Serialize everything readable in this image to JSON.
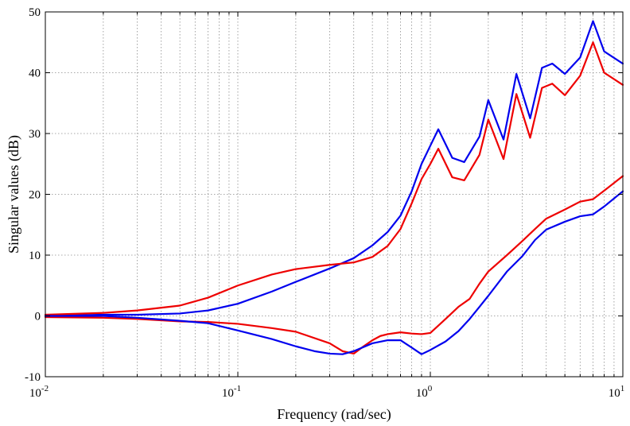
{
  "chart_data": {
    "type": "line",
    "title": "",
    "xlabel": "Frequency (rad/sec)",
    "ylabel": "Singular values (dB)",
    "xscale": "log",
    "xlim": [
      0.01,
      10
    ],
    "ylim": [
      -10,
      50
    ],
    "grid": true,
    "legend": "none",
    "x_ticks": [
      {
        "base": "10",
        "exp": "-2",
        "value": 0.01
      },
      {
        "base": "10",
        "exp": "-1",
        "value": 0.1
      },
      {
        "base": "10",
        "exp": "0",
        "value": 1
      },
      {
        "base": "10",
        "exp": "1",
        "value": 10
      }
    ],
    "y_ticks": [
      -10,
      0,
      10,
      20,
      30,
      40,
      50
    ],
    "series": [
      {
        "color": "#0000ee",
        "points": [
          [
            0.01,
            0
          ],
          [
            0.02,
            0.2
          ],
          [
            0.03,
            0.2
          ],
          [
            0.05,
            0.4
          ],
          [
            0.07,
            0.9
          ],
          [
            0.1,
            2
          ],
          [
            0.15,
            4
          ],
          [
            0.2,
            5.6
          ],
          [
            0.3,
            7.8
          ],
          [
            0.4,
            9.5
          ],
          [
            0.5,
            11.6
          ],
          [
            0.6,
            13.8
          ],
          [
            0.7,
            16.5
          ],
          [
            0.8,
            20.5
          ],
          [
            0.9,
            25
          ],
          [
            1.0,
            28
          ],
          [
            1.1,
            30.7
          ],
          [
            1.3,
            26
          ],
          [
            1.5,
            25.3
          ],
          [
            1.8,
            29.5
          ],
          [
            2.0,
            35.5
          ],
          [
            2.4,
            29
          ],
          [
            2.8,
            39.8
          ],
          [
            3.3,
            32.5
          ],
          [
            3.8,
            40.8
          ],
          [
            4.3,
            41.5
          ],
          [
            5.0,
            39.8
          ],
          [
            6.0,
            42.5
          ],
          [
            7.0,
            48.5
          ],
          [
            8.0,
            43.5
          ],
          [
            10,
            41.5
          ]
        ]
      },
      {
        "color": "#ee0000",
        "points": [
          [
            0.01,
            0.2
          ],
          [
            0.02,
            0.5
          ],
          [
            0.03,
            0.9
          ],
          [
            0.05,
            1.7
          ],
          [
            0.07,
            3
          ],
          [
            0.1,
            5
          ],
          [
            0.15,
            6.8
          ],
          [
            0.2,
            7.7
          ],
          [
            0.3,
            8.4
          ],
          [
            0.4,
            8.8
          ],
          [
            0.5,
            9.7
          ],
          [
            0.6,
            11.5
          ],
          [
            0.7,
            14.3
          ],
          [
            0.8,
            18.5
          ],
          [
            0.9,
            22.5
          ],
          [
            1.0,
            25
          ],
          [
            1.1,
            27.5
          ],
          [
            1.3,
            22.8
          ],
          [
            1.5,
            22.3
          ],
          [
            1.8,
            26.5
          ],
          [
            2.0,
            32.3
          ],
          [
            2.4,
            25.8
          ],
          [
            2.8,
            36.5
          ],
          [
            3.3,
            29.3
          ],
          [
            3.8,
            37.5
          ],
          [
            4.3,
            38.2
          ],
          [
            5.0,
            36.3
          ],
          [
            6.0,
            39.5
          ],
          [
            7.0,
            45
          ],
          [
            8.0,
            40
          ],
          [
            10,
            38
          ]
        ]
      },
      {
        "color": "#ee0000",
        "points": [
          [
            0.01,
            -0.2
          ],
          [
            0.02,
            -0.3
          ],
          [
            0.03,
            -0.5
          ],
          [
            0.05,
            -0.9
          ],
          [
            0.07,
            -1
          ],
          [
            0.1,
            -1.3
          ],
          [
            0.15,
            -2
          ],
          [
            0.2,
            -2.6
          ],
          [
            0.3,
            -4.5
          ],
          [
            0.35,
            -5.8
          ],
          [
            0.4,
            -6.2
          ],
          [
            0.45,
            -5
          ],
          [
            0.5,
            -4
          ],
          [
            0.55,
            -3.3
          ],
          [
            0.6,
            -3
          ],
          [
            0.7,
            -2.7
          ],
          [
            0.8,
            -2.9
          ],
          [
            0.9,
            -3
          ],
          [
            1.0,
            -2.8
          ],
          [
            1.2,
            -0.5
          ],
          [
            1.4,
            1.5
          ],
          [
            1.6,
            2.8
          ],
          [
            1.8,
            5.3
          ],
          [
            2.0,
            7.3
          ],
          [
            2.5,
            10
          ],
          [
            3.0,
            12.3
          ],
          [
            3.5,
            14.3
          ],
          [
            4.0,
            16
          ],
          [
            5.0,
            17.5
          ],
          [
            6.0,
            18.8
          ],
          [
            7.0,
            19.2
          ],
          [
            8.0,
            20.6
          ],
          [
            10,
            23
          ]
        ]
      },
      {
        "color": "#0000ee",
        "points": [
          [
            0.01,
            0
          ],
          [
            0.02,
            0
          ],
          [
            0.03,
            -0.3
          ],
          [
            0.05,
            -0.8
          ],
          [
            0.07,
            -1.2
          ],
          [
            0.1,
            -2.4
          ],
          [
            0.15,
            -3.8
          ],
          [
            0.2,
            -5
          ],
          [
            0.25,
            -5.8
          ],
          [
            0.3,
            -6.2
          ],
          [
            0.35,
            -6.3
          ],
          [
            0.4,
            -5.8
          ],
          [
            0.5,
            -4.5
          ],
          [
            0.6,
            -4
          ],
          [
            0.7,
            -4
          ],
          [
            0.8,
            -5.2
          ],
          [
            0.9,
            -6.3
          ],
          [
            1.0,
            -5.6
          ],
          [
            1.2,
            -4.2
          ],
          [
            1.4,
            -2.5
          ],
          [
            1.6,
            -0.5
          ],
          [
            1.8,
            1.5
          ],
          [
            2.0,
            3.3
          ],
          [
            2.5,
            7.3
          ],
          [
            3.0,
            9.8
          ],
          [
            3.5,
            12.5
          ],
          [
            4.0,
            14.2
          ],
          [
            5.0,
            15.5
          ],
          [
            6.0,
            16.4
          ],
          [
            7.0,
            16.7
          ],
          [
            8.0,
            18
          ],
          [
            10,
            20.5
          ]
        ]
      }
    ]
  }
}
